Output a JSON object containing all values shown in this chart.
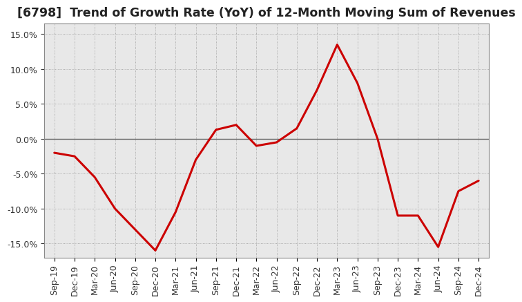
{
  "title": "[6798]  Trend of Growth Rate (YoY) of 12-Month Moving Sum of Revenues",
  "x_labels": [
    "Sep-19",
    "Dec-19",
    "Mar-20",
    "Jun-20",
    "Sep-20",
    "Dec-20",
    "Mar-21",
    "Jun-21",
    "Sep-21",
    "Dec-21",
    "Mar-22",
    "Jun-22",
    "Sep-22",
    "Dec-22",
    "Mar-23",
    "Jun-23",
    "Sep-23",
    "Dec-23",
    "Mar-24",
    "Jun-24",
    "Sep-24",
    "Dec-24"
  ],
  "y_values": [
    -2.0,
    -2.5,
    -5.5,
    -10.0,
    -13.0,
    -16.0,
    -10.5,
    -3.0,
    1.3,
    2.0,
    -1.0,
    -0.5,
    1.5,
    7.0,
    13.5,
    8.0,
    0.0,
    -11.0,
    -11.0,
    -15.5,
    -7.5,
    -6.0
  ],
  "line_color": "#cc0000",
  "line_width": 2.2,
  "background_color": "#ffffff",
  "plot_bg_color": "#e8e8e8",
  "grid_color": "#999999",
  "zero_line_color": "#666666",
  "ylim": [
    -17.0,
    16.5
  ],
  "yticks": [
    -15.0,
    -10.0,
    -5.0,
    0.0,
    5.0,
    10.0,
    15.0
  ],
  "title_fontsize": 12.5,
  "tick_fontsize": 9,
  "title_color": "#222222"
}
